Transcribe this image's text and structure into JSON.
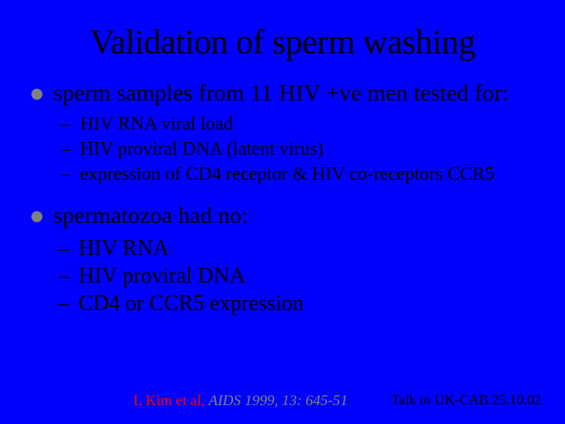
{
  "colors": {
    "background": "#0000ff",
    "text": "#000000",
    "bullet_dot": "#808080",
    "citation_author": "#ff0000",
    "citation_journal": "#808080"
  },
  "typography": {
    "family": "Times New Roman",
    "title_size_pt": 44,
    "l1_size_pt": 30,
    "l2a_size_pt": 24,
    "l2b_size_pt": 28,
    "citation_size_pt": 19,
    "footer_size_pt": 18
  },
  "title": "Validation of sperm washing",
  "bullets": {
    "item1": {
      "text": "sperm samples from 11 HIV +ve men tested for:",
      "sub": [
        "HIV RNA viral load",
        "HIV proviral DNA (latent virus)",
        "expression of CD4 receptor & HIV co-receptors CCR5"
      ]
    },
    "item2": {
      "text": "spermatozoa had no:",
      "sub": [
        "HIV RNA",
        "HIV proviral DNA",
        "CD4 or CCR5 expression"
      ]
    }
  },
  "citation": {
    "author": "L Kim et al, ",
    "journal": "AIDS 1999, 13: 645-51"
  },
  "footer": "Talk to UK-CAB 25.10.02"
}
